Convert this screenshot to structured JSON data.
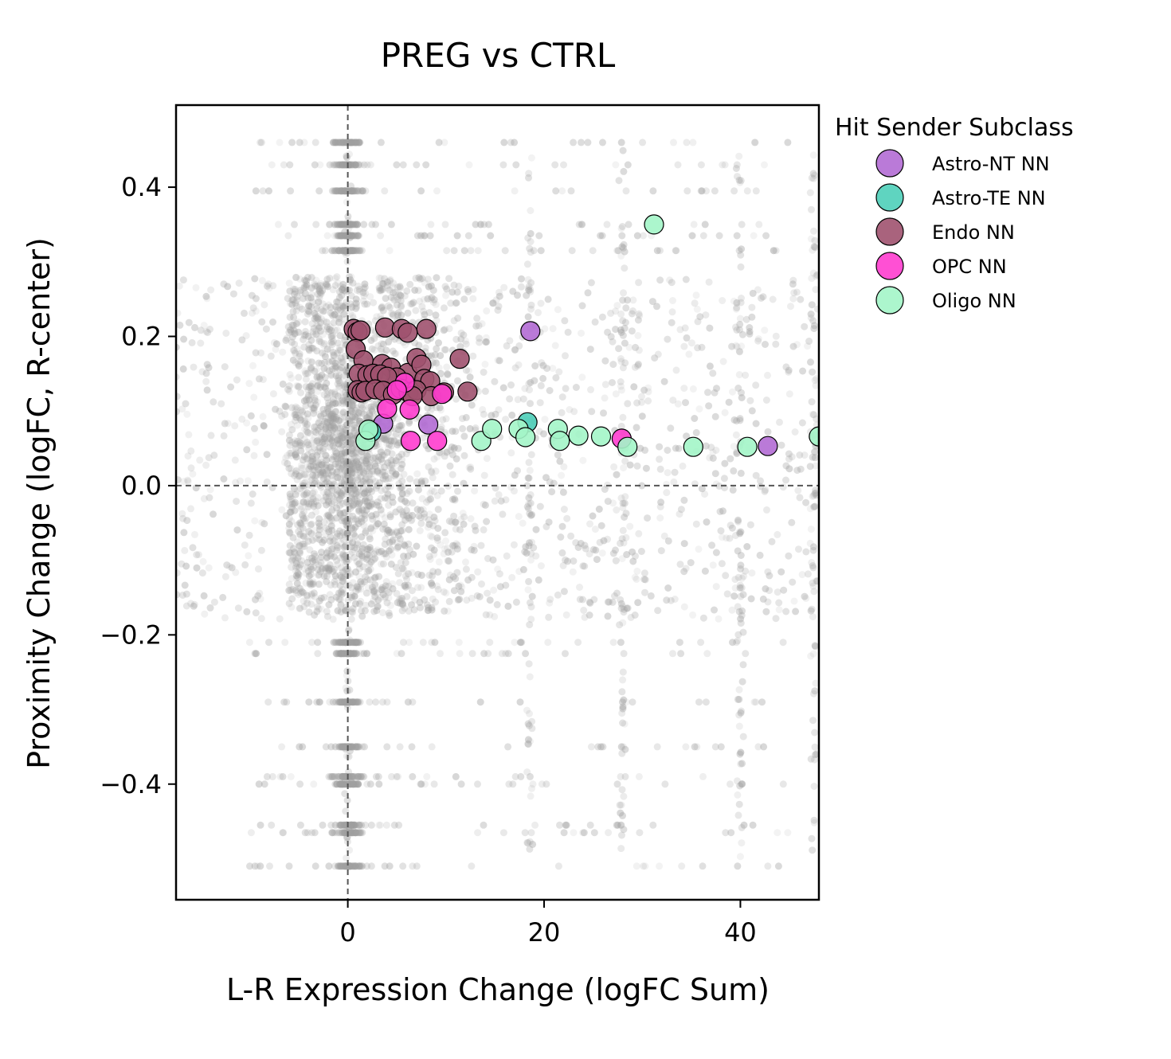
{
  "chart_data": {
    "type": "scatter",
    "title": "PREG vs CTRL",
    "xlabel": "L-R Expression Change (logFC Sum)",
    "ylabel": "Proximity Change (logFC, R-center)",
    "xlim": [
      -17.5,
      48
    ],
    "ylim": [
      -0.555,
      0.51
    ],
    "xticks": [
      0,
      20,
      40
    ],
    "xtick_labels": [
      "0",
      "20",
      "40"
    ],
    "yticks": [
      0.4,
      0.2,
      0.0,
      -0.2,
      -0.4
    ],
    "ytick_labels": [
      "0.4",
      "0.2",
      "0.0",
      "−0.2",
      "−0.4"
    ],
    "reference_lines": {
      "x": 0,
      "y": 0,
      "style": "dashed",
      "color": "#555555"
    },
    "background": {
      "description": "non-hit L-R pairs",
      "color": "#a0a0a0",
      "main_cluster": {
        "x_range": [
          -6,
          15
        ],
        "y_range": [
          -0.17,
          0.28
        ]
      },
      "bands_y": [
        0.46,
        0.43,
        0.395,
        0.35,
        0.335,
        0.315,
        -0.21,
        -0.225,
        -0.29,
        -0.35,
        -0.39,
        -0.4,
        -0.455,
        -0.465,
        -0.51
      ],
      "dense_x_columns": [
        0,
        18.5,
        28,
        40,
        47.5
      ]
    },
    "legend": {
      "title": "Hit Sender Subclass",
      "placement": "outside right, top"
    },
    "series": [
      {
        "name": "Astro-NT NN",
        "color": "#b36bd4",
        "points": [
          {
            "x": 18.6,
            "y": 0.207
          },
          {
            "x": 3.6,
            "y": 0.083
          },
          {
            "x": 8.2,
            "y": 0.082
          },
          {
            "x": 42.8,
            "y": 0.053
          },
          {
            "x": 4.7,
            "y": 0.135
          }
        ]
      },
      {
        "name": "Astro-TE NN",
        "color": "#4ecfb9",
        "points": [
          {
            "x": 18.3,
            "y": 0.085
          },
          {
            "x": 2.4,
            "y": 0.072
          }
        ]
      },
      {
        "name": "Endo NN",
        "color": "#a0526f",
        "points": [
          {
            "x": 0.6,
            "y": 0.21
          },
          {
            "x": 1.0,
            "y": 0.206
          },
          {
            "x": 1.3,
            "y": 0.208
          },
          {
            "x": 3.8,
            "y": 0.212
          },
          {
            "x": 5.5,
            "y": 0.21
          },
          {
            "x": 8.0,
            "y": 0.21
          },
          {
            "x": 6.1,
            "y": 0.205
          },
          {
            "x": 0.8,
            "y": 0.183
          },
          {
            "x": 1.6,
            "y": 0.168
          },
          {
            "x": 3.5,
            "y": 0.163
          },
          {
            "x": 4.4,
            "y": 0.158
          },
          {
            "x": 6.1,
            "y": 0.151
          },
          {
            "x": 7.0,
            "y": 0.171
          },
          {
            "x": 7.5,
            "y": 0.162
          },
          {
            "x": 11.4,
            "y": 0.17
          },
          {
            "x": 5.0,
            "y": 0.145
          },
          {
            "x": 7.8,
            "y": 0.143
          },
          {
            "x": 8.4,
            "y": 0.14
          },
          {
            "x": 1.1,
            "y": 0.15
          },
          {
            "x": 2.0,
            "y": 0.148
          },
          {
            "x": 2.6,
            "y": 0.15
          },
          {
            "x": 3.3,
            "y": 0.149
          },
          {
            "x": 4.0,
            "y": 0.146
          },
          {
            "x": 1.0,
            "y": 0.128
          },
          {
            "x": 1.4,
            "y": 0.125
          },
          {
            "x": 1.8,
            "y": 0.127
          },
          {
            "x": 2.8,
            "y": 0.129
          },
          {
            "x": 3.6,
            "y": 0.127
          },
          {
            "x": 4.6,
            "y": 0.122
          },
          {
            "x": 5.4,
            "y": 0.13
          },
          {
            "x": 6.2,
            "y": 0.125
          },
          {
            "x": 7.0,
            "y": 0.128
          },
          {
            "x": 8.5,
            "y": 0.12
          },
          {
            "x": 9.8,
            "y": 0.125
          },
          {
            "x": 12.2,
            "y": 0.126
          },
          {
            "x": 6.6,
            "y": 0.12
          }
        ]
      },
      {
        "name": "OPC NN",
        "color": "#ff3dcf",
        "points": [
          {
            "x": 5.8,
            "y": 0.138
          },
          {
            "x": 5.0,
            "y": 0.128
          },
          {
            "x": 9.6,
            "y": 0.123
          },
          {
            "x": 4.0,
            "y": 0.103
          },
          {
            "x": 6.3,
            "y": 0.102
          },
          {
            "x": 6.4,
            "y": 0.06
          },
          {
            "x": 9.1,
            "y": 0.06
          },
          {
            "x": 27.9,
            "y": 0.063
          }
        ]
      },
      {
        "name": "Oligo NN",
        "color": "#a3f5c8",
        "points": [
          {
            "x": 31.2,
            "y": 0.35
          },
          {
            "x": 1.8,
            "y": 0.06
          },
          {
            "x": 2.1,
            "y": 0.075
          },
          {
            "x": 13.6,
            "y": 0.06
          },
          {
            "x": 14.7,
            "y": 0.076
          },
          {
            "x": 17.4,
            "y": 0.076
          },
          {
            "x": 18.1,
            "y": 0.065
          },
          {
            "x": 21.4,
            "y": 0.076
          },
          {
            "x": 21.6,
            "y": 0.06
          },
          {
            "x": 23.5,
            "y": 0.067
          },
          {
            "x": 25.8,
            "y": 0.066
          },
          {
            "x": 28.5,
            "y": 0.052
          },
          {
            "x": 35.2,
            "y": 0.052
          },
          {
            "x": 40.7,
            "y": 0.052
          },
          {
            "x": 48.0,
            "y": 0.066
          }
        ]
      }
    ]
  }
}
